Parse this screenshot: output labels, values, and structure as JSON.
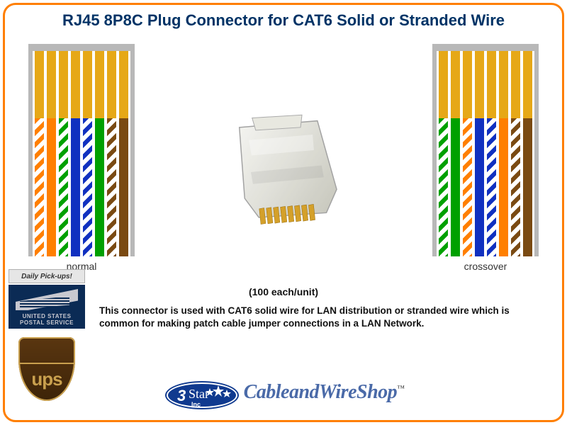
{
  "title": "RJ45 8P8C Plug Connector for CAT6 Solid or Stranded Wire",
  "quantity_label": "(100 each/unit)",
  "description": "This connector is used with CAT6 solid wire for LAN distribution or stranded wire which is common for making patch cable jumper connections in a LAN Network.",
  "diagrams": {
    "contact_color": "#e6a817",
    "body_color": "#b8b8b8",
    "normal": {
      "label": "normal",
      "wires": [
        {
          "color": "#ff7f00",
          "striped": true
        },
        {
          "color": "#ff7f00",
          "striped": false
        },
        {
          "color": "#00a000",
          "striped": true
        },
        {
          "color": "#1030c0",
          "striped": false
        },
        {
          "color": "#1030c0",
          "striped": true
        },
        {
          "color": "#00a000",
          "striped": false
        },
        {
          "color": "#7a4a12",
          "striped": true
        },
        {
          "color": "#7a4a12",
          "striped": false
        }
      ]
    },
    "crossover": {
      "label": "crossover",
      "wires": [
        {
          "color": "#00a000",
          "striped": true
        },
        {
          "color": "#00a000",
          "striped": false
        },
        {
          "color": "#ff7f00",
          "striped": true
        },
        {
          "color": "#1030c0",
          "striped": false
        },
        {
          "color": "#1030c0",
          "striped": true
        },
        {
          "color": "#ff7f00",
          "striped": false
        },
        {
          "color": "#7a4a12",
          "striped": true
        },
        {
          "color": "#7a4a12",
          "striped": false
        }
      ]
    }
  },
  "badges": {
    "pickup": "Daily Pick-ups!",
    "usps_line1": "UNITED STATES",
    "usps_line2": "POSTAL SERVICE",
    "ups": "ups"
  },
  "brand": {
    "logo_text": "3 Star Inc",
    "shop": "CableandWireShop",
    "tm": "™"
  },
  "colors": {
    "frame": "#ff7f00",
    "title": "#003366",
    "brand_text": "#4a6aa8",
    "usps_bg": "#0b2b55",
    "ups_bg_top": "#5a3610",
    "ups_bg_bottom": "#3d2408",
    "ups_gold": "#c9a04e"
  }
}
